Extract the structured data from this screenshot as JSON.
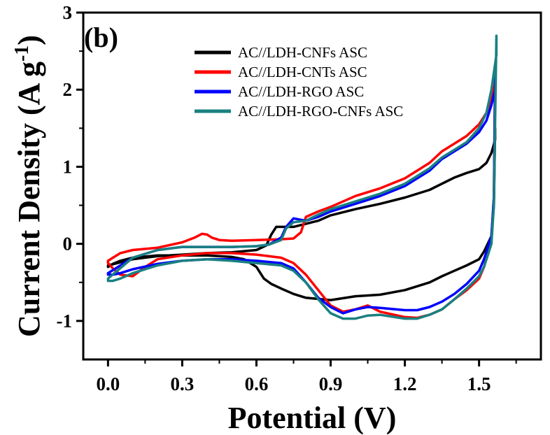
{
  "chart_data": {
    "type": "line",
    "panel_label": "(b)",
    "xlabel": "Potential (V)",
    "ylabel": "Current Density (A g-1)",
    "ylabel_parts": {
      "main": "Current Density (A g",
      "sup": "-1",
      "close": ")"
    },
    "xlim": [
      -0.1,
      1.75
    ],
    "ylim": [
      -1.5,
      3
    ],
    "xticks": [
      0.0,
      0.3,
      0.6,
      0.9,
      1.2,
      1.5
    ],
    "xtick_labels": [
      "0.0",
      "0.3",
      "0.6",
      "0.9",
      "1.2",
      "1.5"
    ],
    "yticks": [
      -1,
      0,
      1,
      2,
      3
    ],
    "ytick_labels": [
      "-1",
      "0",
      "1",
      "2",
      "3"
    ],
    "grid": false,
    "legend_position": "top-right",
    "series": [
      {
        "name": "AC//LDH-CNFs ASC",
        "color": "#000000",
        "x": [
          0.0,
          0.1,
          0.2,
          0.3,
          0.4,
          0.5,
          0.6,
          0.64,
          0.66,
          0.68,
          0.75,
          0.85,
          0.9,
          1.0,
          1.1,
          1.2,
          1.3,
          1.35,
          1.4,
          1.45,
          1.5,
          1.53,
          1.55,
          1.565,
          1.565,
          1.56,
          1.55,
          1.52,
          1.5,
          1.45,
          1.4,
          1.35,
          1.3,
          1.2,
          1.1,
          1.0,
          0.9,
          0.8,
          0.75,
          0.7,
          0.66,
          0.63,
          0.6,
          0.55,
          0.5,
          0.4,
          0.3,
          0.2,
          0.1,
          0.05,
          0.02,
          0.0,
          0.0
        ],
        "y": [
          -0.28,
          -0.2,
          -0.16,
          -0.14,
          -0.12,
          -0.11,
          -0.08,
          -0.02,
          0.12,
          0.22,
          0.22,
          0.3,
          0.37,
          0.45,
          0.52,
          0.6,
          0.7,
          0.78,
          0.86,
          0.92,
          0.97,
          1.05,
          1.18,
          1.35,
          1.5,
          0.5,
          0.1,
          -0.1,
          -0.2,
          -0.28,
          -0.35,
          -0.42,
          -0.5,
          -0.6,
          -0.66,
          -0.68,
          -0.73,
          -0.7,
          -0.65,
          -0.58,
          -0.52,
          -0.45,
          -0.3,
          -0.2,
          -0.17,
          -0.15,
          -0.15,
          -0.15,
          -0.18,
          -0.22,
          -0.26,
          -0.3,
          -0.28
        ]
      },
      {
        "name": "AC//LDH-CNTs ASC",
        "color": "#ff0000",
        "x": [
          0.0,
          0.05,
          0.1,
          0.2,
          0.3,
          0.35,
          0.38,
          0.4,
          0.42,
          0.45,
          0.5,
          0.6,
          0.7,
          0.75,
          0.78,
          0.8,
          0.85,
          0.9,
          1.0,
          1.1,
          1.2,
          1.3,
          1.35,
          1.4,
          1.45,
          1.5,
          1.53,
          1.55,
          1.565,
          1.565,
          1.56,
          1.55,
          1.52,
          1.5,
          1.45,
          1.4,
          1.35,
          1.3,
          1.25,
          1.2,
          1.1,
          1.05,
          1.0,
          0.95,
          0.9,
          0.85,
          0.8,
          0.75,
          0.7,
          0.6,
          0.5,
          0.4,
          0.3,
          0.2,
          0.15,
          0.1,
          0.05,
          0.02,
          0.0,
          0.0
        ],
        "y": [
          -0.22,
          -0.12,
          -0.08,
          -0.05,
          0.02,
          0.08,
          0.13,
          0.12,
          0.08,
          0.05,
          0.04,
          0.05,
          0.06,
          0.07,
          0.15,
          0.35,
          0.42,
          0.48,
          0.62,
          0.72,
          0.85,
          1.05,
          1.2,
          1.3,
          1.4,
          1.55,
          1.7,
          1.85,
          2.1,
          2.2,
          0.6,
          0.05,
          -0.3,
          -0.45,
          -0.6,
          -0.72,
          -0.85,
          -0.92,
          -0.96,
          -0.95,
          -0.88,
          -0.8,
          -0.85,
          -0.88,
          -0.8,
          -0.6,
          -0.4,
          -0.25,
          -0.18,
          -0.14,
          -0.12,
          -0.12,
          -0.15,
          -0.2,
          -0.3,
          -0.42,
          -0.4,
          -0.32,
          -0.25,
          -0.22
        ]
      },
      {
        "name": "AC//LDH-RGO ASC",
        "color": "#0000ff",
        "x": [
          0.0,
          0.1,
          0.2,
          0.3,
          0.4,
          0.5,
          0.6,
          0.65,
          0.7,
          0.72,
          0.75,
          0.8,
          0.85,
          0.9,
          1.0,
          1.1,
          1.2,
          1.3,
          1.35,
          1.4,
          1.45,
          1.5,
          1.53,
          1.55,
          1.565,
          1.565,
          1.56,
          1.55,
          1.52,
          1.5,
          1.45,
          1.4,
          1.35,
          1.3,
          1.25,
          1.2,
          1.1,
          1.05,
          1.0,
          0.95,
          0.9,
          0.85,
          0.8,
          0.75,
          0.7,
          0.6,
          0.5,
          0.4,
          0.3,
          0.2,
          0.1,
          0.05,
          0.02,
          0.0,
          0.0
        ],
        "y": [
          -0.38,
          -0.18,
          -0.08,
          -0.04,
          -0.04,
          -0.04,
          -0.03,
          -0.01,
          0.08,
          0.22,
          0.33,
          0.3,
          0.35,
          0.42,
          0.52,
          0.62,
          0.75,
          0.95,
          1.1,
          1.2,
          1.3,
          1.45,
          1.6,
          1.8,
          2.0,
          2.15,
          0.6,
          0.1,
          -0.2,
          -0.35,
          -0.52,
          -0.65,
          -0.75,
          -0.82,
          -0.86,
          -0.86,
          -0.83,
          -0.82,
          -0.85,
          -0.9,
          -0.82,
          -0.7,
          -0.5,
          -0.32,
          -0.25,
          -0.22,
          -0.2,
          -0.2,
          -0.22,
          -0.26,
          -0.33,
          -0.38,
          -0.4,
          -0.4,
          -0.38
        ]
      },
      {
        "name": "AC//LDH-RGO-CNFs ASC",
        "color": "#1a8080",
        "x": [
          0.0,
          0.1,
          0.2,
          0.3,
          0.4,
          0.5,
          0.6,
          0.65,
          0.7,
          0.72,
          0.75,
          0.8,
          0.85,
          0.9,
          1.0,
          1.1,
          1.2,
          1.3,
          1.35,
          1.4,
          1.45,
          1.5,
          1.53,
          1.55,
          1.57,
          1.57,
          1.56,
          1.55,
          1.52,
          1.5,
          1.45,
          1.4,
          1.35,
          1.3,
          1.25,
          1.2,
          1.1,
          1.05,
          1.0,
          0.95,
          0.9,
          0.85,
          0.8,
          0.75,
          0.7,
          0.6,
          0.5,
          0.4,
          0.3,
          0.2,
          0.1,
          0.05,
          0.02,
          0.0,
          0.0
        ],
        "y": [
          -0.45,
          -0.18,
          -0.08,
          -0.04,
          -0.04,
          -0.04,
          -0.03,
          -0.01,
          0.05,
          0.2,
          0.28,
          0.3,
          0.38,
          0.45,
          0.55,
          0.65,
          0.78,
          0.98,
          1.12,
          1.22,
          1.32,
          1.5,
          1.7,
          2.0,
          2.45,
          2.7,
          0.5,
          0.0,
          -0.3,
          -0.42,
          -0.58,
          -0.72,
          -0.85,
          -0.92,
          -0.97,
          -0.97,
          -0.92,
          -0.93,
          -0.97,
          -0.97,
          -0.9,
          -0.72,
          -0.5,
          -0.35,
          -0.28,
          -0.25,
          -0.22,
          -0.2,
          -0.22,
          -0.28,
          -0.38,
          -0.45,
          -0.48,
          -0.48,
          -0.45
        ]
      }
    ]
  }
}
